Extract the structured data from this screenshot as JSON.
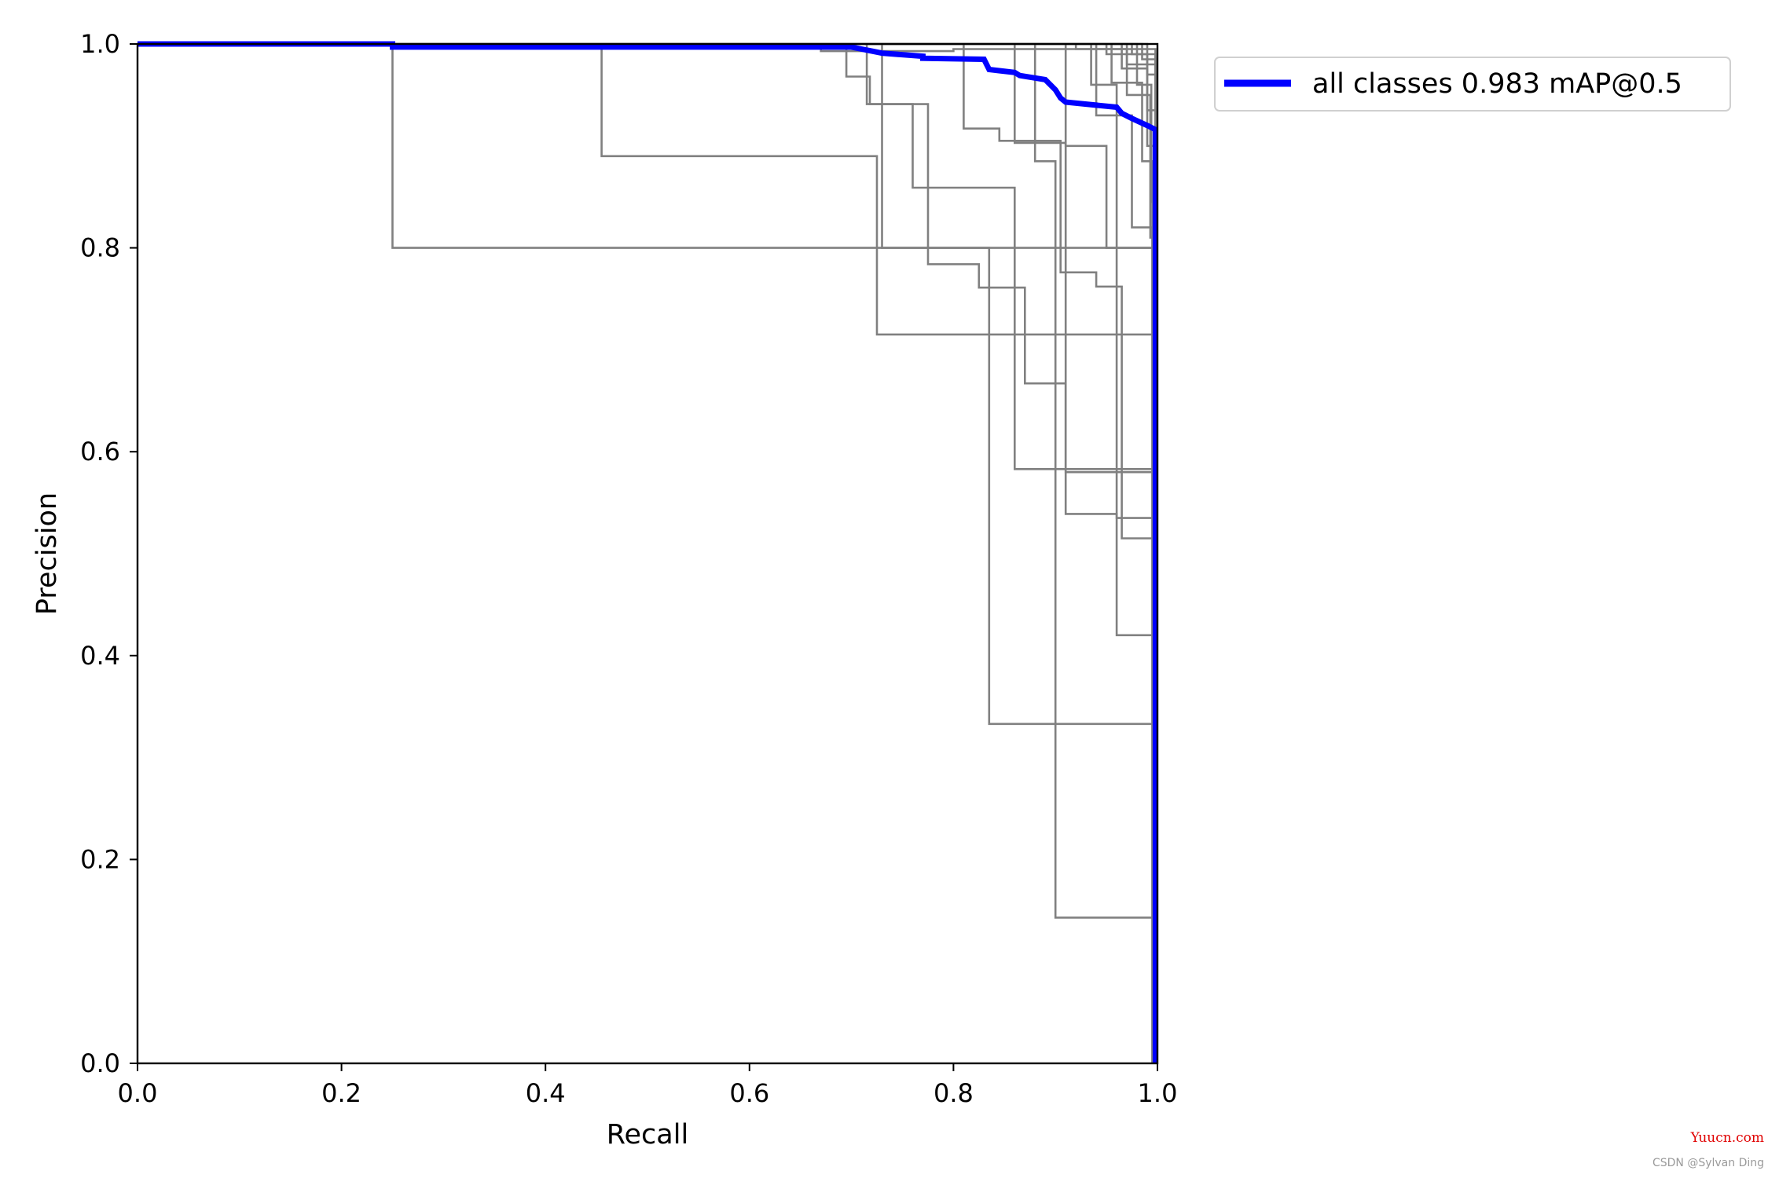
{
  "chart_data": {
    "type": "line",
    "title": "",
    "xlabel": "Recall",
    "ylabel": "Precision",
    "xlim": [
      0,
      1
    ],
    "ylim": [
      0,
      1
    ],
    "xticks": [
      "0.0",
      "0.2",
      "0.4",
      "0.6",
      "0.8",
      "1.0"
    ],
    "yticks": [
      "0.0",
      "0.2",
      "0.4",
      "0.6",
      "0.8",
      "1.0"
    ],
    "grid": false,
    "legend": {
      "placement": "outside-top-right",
      "entries": [
        "all classes 0.983 mAP@0.5"
      ]
    },
    "colors": {
      "per_class": "#808080",
      "all_classes": "#0000ff"
    },
    "series": [
      {
        "name": "all classes 0.983 mAP@0.5",
        "width": "thick",
        "x": [
          0,
          0.25,
          0.25,
          0.7,
          0.71,
          0.72,
          0.73,
          0.77,
          0.77,
          0.83,
          0.835,
          0.86,
          0.865,
          0.89,
          0.9,
          0.905,
          0.91,
          0.96,
          0.965,
          0.975,
          0.99,
          0.998,
          0.998
        ],
        "y": [
          1,
          1,
          0.997,
          0.997,
          0.995,
          0.993,
          0.991,
          0.988,
          0.986,
          0.985,
          0.975,
          0.972,
          0.969,
          0.965,
          0.955,
          0.947,
          0.943,
          0.938,
          0.932,
          0.927,
          0.92,
          0.916,
          0
        ]
      },
      {
        "x": [
          0,
          0.25,
          0.25,
          0.998,
          0.998
        ],
        "y": [
          1,
          1,
          0.8,
          0.8,
          0
        ]
      },
      {
        "x": [
          0,
          0.455,
          0.455,
          0.725,
          0.725,
          0.998,
          0.998
        ],
        "y": [
          1,
          1,
          0.89,
          0.89,
          0.715,
          0.715,
          0
        ]
      },
      {
        "x": [
          0,
          0.695,
          0.695,
          0.718,
          0.718,
          0.76,
          0.76,
          0.86,
          0.86,
          0.998,
          0.998
        ],
        "y": [
          1,
          1,
          0.968,
          0.968,
          0.941,
          0.941,
          0.859,
          0.859,
          0.583,
          0.583,
          0
        ]
      },
      {
        "x": [
          0,
          0.715,
          0.715,
          0.775,
          0.775,
          0.825,
          0.825,
          0.87,
          0.87,
          0.91,
          0.91,
          0.96,
          0.96,
          0.998,
          0.998
        ],
        "y": [
          1,
          1,
          0.941,
          0.941,
          0.784,
          0.784,
          0.761,
          0.761,
          0.667,
          0.667,
          0.539,
          0.539,
          0.42,
          0.42,
          0
        ]
      },
      {
        "x": [
          0,
          0.73,
          0.73,
          0.835,
          0.835,
          0.998,
          0.998
        ],
        "y": [
          1,
          1,
          0.8,
          0.8,
          0.333,
          0.333,
          0
        ]
      },
      {
        "x": [
          0,
          0.81,
          0.81,
          0.845,
          0.845,
          0.905,
          0.905,
          0.94,
          0.94,
          0.965,
          0.965,
          0.998,
          0.998
        ],
        "y": [
          1,
          1,
          0.917,
          0.917,
          0.905,
          0.905,
          0.776,
          0.776,
          0.762,
          0.762,
          0.515,
          0.515,
          0
        ]
      },
      {
        "x": [
          0,
          0.88,
          0.88,
          0.9,
          0.9,
          0.998,
          0.998
        ],
        "y": [
          1,
          1,
          0.885,
          0.885,
          0.143,
          0.143,
          0
        ]
      },
      {
        "x": [
          0,
          0.86,
          0.86,
          0.91,
          0.91,
          0.998,
          0.998
        ],
        "y": [
          1,
          1,
          0.903,
          0.903,
          0.58,
          0.58,
          0
        ]
      },
      {
        "x": [
          0,
          0.91,
          0.91,
          0.95,
          0.95,
          0.998,
          0.998
        ],
        "y": [
          1,
          1,
          0.9,
          0.9,
          0.8,
          0.8,
          0
        ]
      },
      {
        "x": [
          0,
          0.935,
          0.935,
          0.96,
          0.96,
          0.998,
          0.998
        ],
        "y": [
          1,
          1,
          0.96,
          0.96,
          0.535,
          0.535,
          0
        ]
      },
      {
        "x": [
          0,
          0.94,
          0.94,
          0.975,
          0.975,
          0.995,
          0.995
        ],
        "y": [
          1,
          1,
          0.93,
          0.93,
          0.82,
          0.82,
          0
        ]
      },
      {
        "x": [
          0,
          0.955,
          0.955,
          0.985,
          0.985,
          0.995,
          0.995
        ],
        "y": [
          1,
          1,
          0.962,
          0.962,
          0.885,
          0.885,
          0
        ]
      },
      {
        "x": [
          0,
          0.965,
          0.965,
          0.99,
          0.99,
          0.998,
          0.998
        ],
        "y": [
          1,
          1,
          0.976,
          0.976,
          0.935,
          0.935,
          0
        ]
      },
      {
        "x": [
          0,
          0.97,
          0.97,
          0.993,
          0.993,
          0.998,
          0.998
        ],
        "y": [
          1,
          1,
          0.95,
          0.95,
          0.81,
          0.81,
          0
        ]
      },
      {
        "x": [
          0,
          0.975,
          0.975,
          0.998,
          0.998
        ],
        "y": [
          1,
          1,
          0.99,
          0.99,
          0
        ]
      },
      {
        "x": [
          0,
          0.98,
          0.98,
          0.994,
          0.994,
          0.998,
          0.998
        ],
        "y": [
          1,
          1,
          0.96,
          0.96,
          0.845,
          0.845,
          0
        ]
      },
      {
        "x": [
          0,
          0.985,
          0.985,
          0.998,
          0.998
        ],
        "y": [
          1,
          1,
          0.985,
          0.985,
          0
        ]
      },
      {
        "x": [
          0,
          0.99,
          0.99,
          0.998,
          0.998
        ],
        "y": [
          1,
          1,
          0.97,
          0.97,
          0
        ]
      },
      {
        "x": [
          0,
          0.95,
          0.95,
          0.99,
          0.99,
          0.998,
          0.998
        ],
        "y": [
          1,
          1,
          0.99,
          0.99,
          0.9,
          0.9,
          0
        ]
      },
      {
        "x": [
          0,
          0.92,
          0.92,
          0.97,
          0.97,
          0.998,
          0.998
        ],
        "y": [
          1,
          1,
          0.995,
          0.995,
          0.98,
          0.98,
          0
        ]
      },
      {
        "x": [
          0,
          0.67,
          0.67,
          0.8,
          0.8,
          0.998,
          0.998
        ],
        "y": [
          1,
          1,
          0.993,
          0.993,
          0.995,
          0.995,
          0
        ]
      }
    ]
  },
  "watermark": {
    "site": "Yuucn.com",
    "author": "CSDN @Sylvan Ding"
  }
}
